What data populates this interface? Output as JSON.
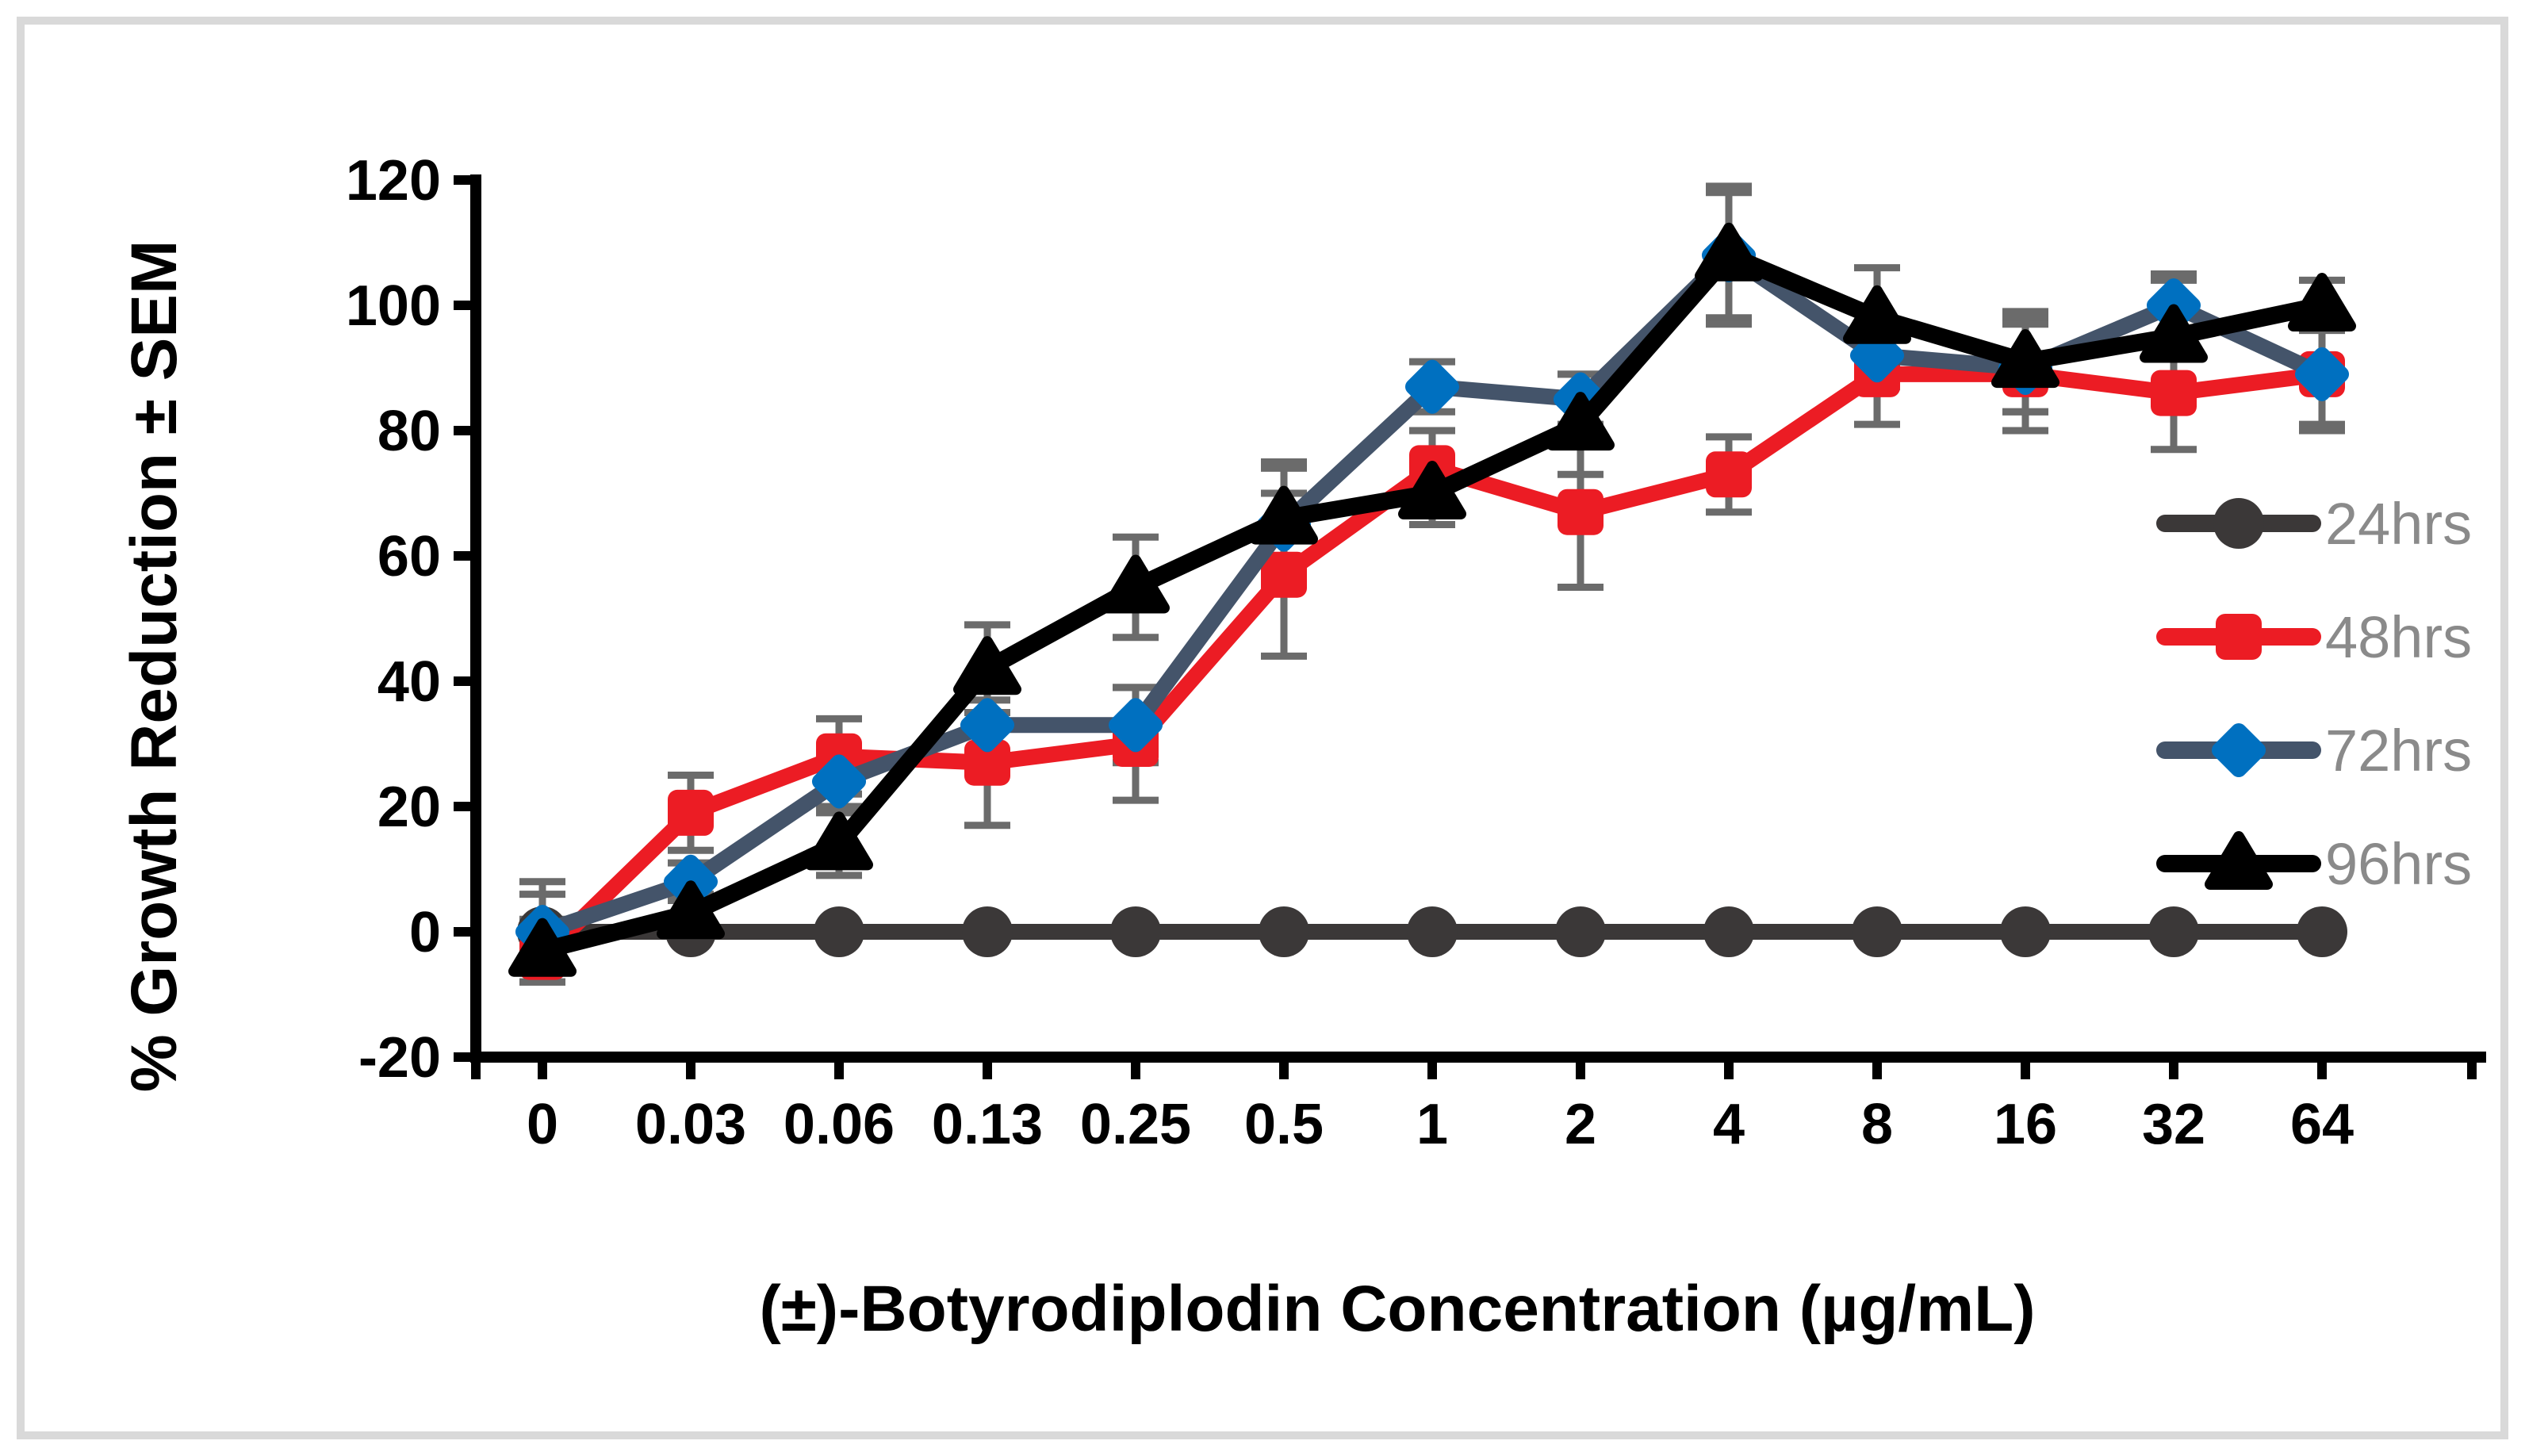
{
  "figure": {
    "background_color": "#ffffff",
    "border_color": "#d9d9d9"
  },
  "chart_data": {
    "type": "line",
    "title": "",
    "xlabel": "(±)-Botyrodiplodin Concentration (µg/mL)",
    "ylabel": "% Growth Reduction ± SEM",
    "categories": [
      "0",
      "0.03",
      "0.06",
      "0.13",
      "0.25",
      "0.5",
      "1",
      "2",
      "4",
      "8",
      "16",
      "32",
      "64"
    ],
    "y_axis": {
      "min": -20,
      "max": 120,
      "step": 20,
      "tick_labels": [
        "120",
        "100",
        "80",
        "60",
        "40",
        "20",
        "0",
        "-20"
      ]
    },
    "grid": false,
    "legend_position": "right",
    "error_bar_color": "#6b6b6b",
    "series": [
      {
        "name": "24hrs",
        "marker": "circle",
        "line_color": "#3b3838",
        "marker_color": "#3b3838",
        "values": [
          0,
          0,
          0,
          0,
          0,
          0,
          0,
          0,
          0,
          0,
          0,
          0,
          0
        ],
        "sem": [
          8,
          0,
          0,
          0,
          0,
          0,
          0,
          0,
          0,
          0,
          0,
          0,
          0
        ]
      },
      {
        "name": "48hrs",
        "marker": "square",
        "line_color": "#ec1c24",
        "marker_color": "#ec1c24",
        "values": [
          -4,
          19,
          28,
          27,
          30,
          57,
          74,
          67,
          73,
          89,
          89,
          86,
          89
        ],
        "sem": [
          4,
          6,
          6,
          10,
          9,
          13,
          6,
          12,
          6,
          8,
          9,
          9,
          9
        ]
      },
      {
        "name": "72hrs",
        "marker": "diamond",
        "line_color": "#44546a",
        "marker_color": "#0070c0",
        "values": [
          0,
          8,
          24,
          33,
          33,
          65,
          87,
          85,
          108,
          92,
          90,
          100,
          89
        ],
        "sem": [
          6,
          3,
          4,
          6,
          6,
          9,
          4,
          4,
          10,
          5,
          7,
          5,
          8
        ]
      },
      {
        "name": "96hrs",
        "marker": "triangle",
        "line_color": "#000000",
        "marker_color": "#000000",
        "values": [
          -3,
          3,
          14,
          42,
          55,
          66,
          70,
          81,
          108,
          98,
          91,
          95,
          100
        ],
        "sem": [
          5,
          3,
          5,
          7,
          8,
          9,
          5,
          8,
          11,
          8,
          8,
          9,
          4
        ]
      }
    ]
  }
}
